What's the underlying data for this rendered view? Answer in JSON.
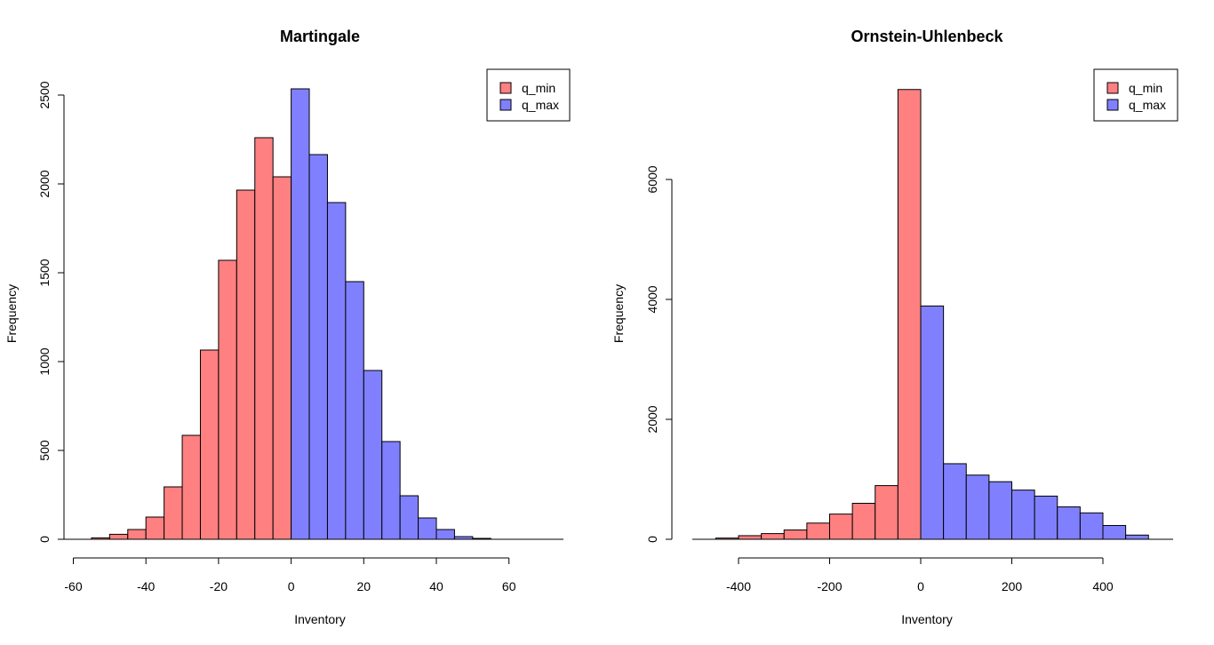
{
  "chart_data": [
    {
      "type": "bar",
      "title": "Martingale",
      "xlabel": "Inventory",
      "ylabel": "Frequency",
      "xlim": [
        -60,
        75
      ],
      "ylim": [
        0,
        2600
      ],
      "xticks": [
        -60,
        -40,
        -20,
        0,
        20,
        40,
        60
      ],
      "xtick_labels": [
        "-60",
        "-40",
        "-20",
        "0",
        "20",
        "40",
        "60"
      ],
      "yticks": [
        0,
        500,
        1000,
        1500,
        2000,
        2500
      ],
      "ytick_labels": [
        "0",
        "500",
        "1000",
        "1500",
        "2000",
        "2500"
      ],
      "legend": {
        "position": "top-right",
        "entries": [
          "q_min",
          "q_max"
        ]
      },
      "series": [
        {
          "name": "q_min",
          "color": "#ff8080",
          "bins": [
            [
              -55,
              -50,
              8
            ],
            [
              -50,
              -45,
              28
            ],
            [
              -45,
              -40,
              55
            ],
            [
              -40,
              -35,
              125
            ],
            [
              -35,
              -30,
              295
            ],
            [
              -30,
              -25,
              585
            ],
            [
              -25,
              -20,
              1065
            ],
            [
              -20,
              -15,
              1570
            ],
            [
              -15,
              -10,
              1965
            ],
            [
              -10,
              -5,
              2260
            ],
            [
              -5,
              0,
              2040
            ]
          ]
        },
        {
          "name": "q_max",
          "color": "#8080ff",
          "bins": [
            [
              0,
              5,
              2535
            ],
            [
              5,
              10,
              2165
            ],
            [
              10,
              15,
              1895
            ],
            [
              15,
              20,
              1450
            ],
            [
              20,
              25,
              950
            ],
            [
              25,
              30,
              550
            ],
            [
              30,
              35,
              245
            ],
            [
              35,
              40,
              120
            ],
            [
              40,
              45,
              55
            ],
            [
              45,
              50,
              15
            ],
            [
              50,
              55,
              5
            ]
          ]
        }
      ]
    },
    {
      "type": "bar",
      "title": "Ornstein-Uhlenbeck",
      "xlabel": "Inventory",
      "ylabel": "Frequency",
      "xlim": [
        -500,
        550
      ],
      "ylim": [
        0,
        7800
      ],
      "xticks": [
        -400,
        -200,
        0,
        200,
        400
      ],
      "xtick_labels": [
        "-400",
        "-200",
        "0",
        "200",
        "400"
      ],
      "yticks": [
        0,
        2000,
        4000,
        6000
      ],
      "ytick_labels": [
        "0",
        "2000",
        "4000",
        "6000"
      ],
      "legend": {
        "position": "top-right",
        "entries": [
          "q_min",
          "q_max"
        ]
      },
      "series": [
        {
          "name": "q_min",
          "color": "#ff8080",
          "bins": [
            [
              -450,
              -400,
              20
            ],
            [
              -400,
              -350,
              60
            ],
            [
              -350,
              -300,
              95
            ],
            [
              -300,
              -250,
              155
            ],
            [
              -250,
              -200,
              270
            ],
            [
              -200,
              -150,
              420
            ],
            [
              -150,
              -100,
              600
            ],
            [
              -100,
              -50,
              895
            ],
            [
              -50,
              0,
              7500
            ]
          ]
        },
        {
          "name": "q_max",
          "color": "#8080ff",
          "bins": [
            [
              0,
              50,
              3890
            ],
            [
              50,
              100,
              1260
            ],
            [
              100,
              150,
              1070
            ],
            [
              150,
              200,
              960
            ],
            [
              200,
              250,
              820
            ],
            [
              250,
              300,
              720
            ],
            [
              300,
              350,
              540
            ],
            [
              350,
              400,
              440
            ],
            [
              400,
              450,
              230
            ],
            [
              450,
              500,
              70
            ]
          ]
        }
      ]
    }
  ]
}
